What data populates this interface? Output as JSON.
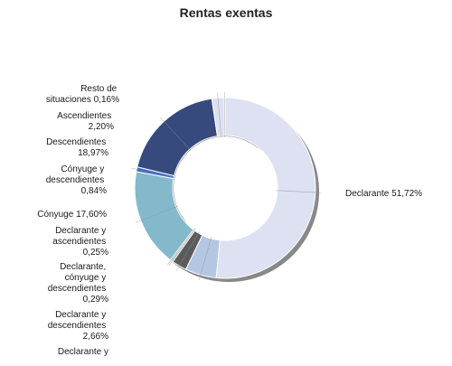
{
  "chart_data": {
    "type": "pie",
    "style": "donut",
    "title": "Rentas exentas",
    "legend": "none",
    "slices": [
      {
        "key": "declarante",
        "label": "Declarante 51,72%",
        "value": 51.72,
        "color": "#dde1f1"
      },
      {
        "key": "declarante-y-hijos",
        "label": "Declarante y ...",
        "value": 5.6,
        "color": "#b5c6e3"
      },
      {
        "key": "declarante-y-descendientes",
        "label": "Declarante y descendientes 2,66%",
        "value": 2.66,
        "color": "#5b5b5b"
      },
      {
        "key": "declarante-conyuge-descendientes",
        "label": "Declarante, cónyuge y descendientes 0,29%",
        "value": 0.29,
        "color": "#8a9aa8"
      },
      {
        "key": "declarante-ascendientes",
        "label": "Declarante y ascendientes 0,25%",
        "value": 0.25,
        "color": "#3f6f8c"
      },
      {
        "key": "conyuge",
        "label": "Cónyuge 17,60%",
        "value": 17.6,
        "color": "#84b9cb"
      },
      {
        "key": "conyuge-descendientes",
        "label": "Cónyuge y descendientes 0,84%",
        "value": 0.84,
        "color": "#3b67c6"
      },
      {
        "key": "descendientes",
        "label": "Descendientes 18,97%",
        "value": 18.97,
        "color": "#364a7d"
      },
      {
        "key": "ascendientes",
        "label": "Ascendientes 2,20%",
        "value": 2.2,
        "color": "#dde1f1"
      },
      {
        "key": "resto",
        "label": "Resto de situaciones 0,16%",
        "value": 0.16,
        "color": "#7a7f95"
      }
    ]
  }
}
